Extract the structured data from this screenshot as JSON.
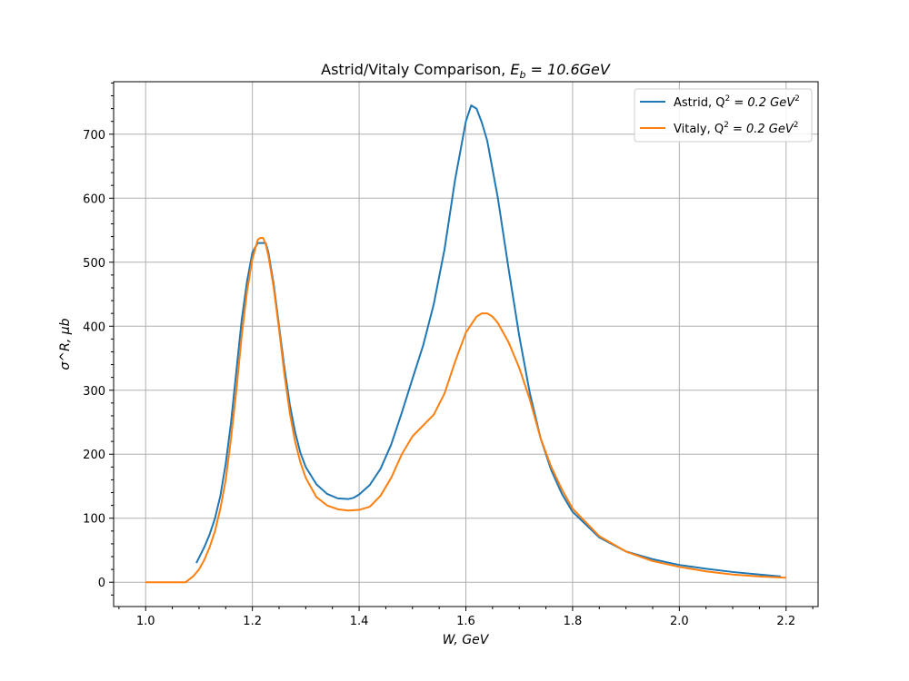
{
  "chart_data": {
    "type": "line",
    "title": "Astrid/Vitaly Comparison, E_b = 10.6GeV",
    "title_parts": {
      "prefix": "Astrid/Vitaly Comparison, ",
      "sym": "E",
      "sub": "b",
      "suffix": " = 10.6GeV"
    },
    "xlabel": "W, GeV",
    "ylabel": "σ^R, μb",
    "xlim": [
      0.94,
      2.26
    ],
    "ylim": [
      -38,
      782
    ],
    "xticks": [
      1.0,
      1.2,
      1.4,
      1.6,
      1.8,
      2.0,
      2.2
    ],
    "xtick_labels": [
      "1.0",
      "1.2",
      "1.4",
      "1.6",
      "1.8",
      "2.0",
      "2.2"
    ],
    "yticks": [
      0,
      100,
      200,
      300,
      400,
      500,
      600,
      700
    ],
    "ytick_labels": [
      "0",
      "100",
      "200",
      "300",
      "400",
      "500",
      "600",
      "700"
    ],
    "grid": true,
    "legend_position": "upper right",
    "series": [
      {
        "name": "Astrid, Q^2 = 0.2 GeV^2",
        "legend": {
          "prefix": "Astrid, Q",
          "sup1": "2",
          "mid": " = 0.2 GeV",
          "sup2": "2"
        },
        "color": "#1f77b4",
        "x": [
          1.095,
          1.11,
          1.12,
          1.13,
          1.14,
          1.15,
          1.16,
          1.17,
          1.18,
          1.19,
          1.2,
          1.21,
          1.22,
          1.225,
          1.23,
          1.24,
          1.25,
          1.26,
          1.27,
          1.28,
          1.29,
          1.3,
          1.32,
          1.34,
          1.36,
          1.38,
          1.39,
          1.4,
          1.42,
          1.44,
          1.46,
          1.48,
          1.5,
          1.52,
          1.54,
          1.56,
          1.58,
          1.6,
          1.61,
          1.62,
          1.63,
          1.64,
          1.66,
          1.68,
          1.7,
          1.72,
          1.74,
          1.76,
          1.78,
          1.8,
          1.85,
          1.9,
          1.95,
          2.0,
          2.05,
          2.1,
          2.15,
          2.19
        ],
        "y": [
          30,
          55,
          75,
          100,
          135,
          185,
          250,
          330,
          410,
          470,
          515,
          530,
          530,
          530,
          515,
          465,
          400,
          335,
          278,
          235,
          202,
          180,
          153,
          138,
          131,
          130,
          132,
          137,
          152,
          177,
          215,
          265,
          318,
          370,
          435,
          520,
          630,
          720,
          745,
          740,
          718,
          690,
          600,
          490,
          385,
          295,
          225,
          175,
          138,
          110,
          70,
          48,
          36,
          27,
          21,
          16,
          12,
          9
        ]
      },
      {
        "name": "Vitaly, Q^2 = 0.2 GeV^2",
        "legend": {
          "prefix": "Vitaly, Q",
          "sup1": "2",
          "mid": " = 0.2 GeV",
          "sup2": "2"
        },
        "color": "#ff7f0e",
        "x": [
          1.0,
          1.02,
          1.04,
          1.06,
          1.075,
          1.09,
          1.1,
          1.11,
          1.12,
          1.13,
          1.14,
          1.15,
          1.16,
          1.17,
          1.18,
          1.19,
          1.2,
          1.21,
          1.215,
          1.22,
          1.225,
          1.23,
          1.24,
          1.25,
          1.26,
          1.27,
          1.28,
          1.29,
          1.3,
          1.32,
          1.34,
          1.36,
          1.38,
          1.4,
          1.42,
          1.44,
          1.46,
          1.48,
          1.5,
          1.52,
          1.54,
          1.56,
          1.58,
          1.6,
          1.62,
          1.63,
          1.64,
          1.65,
          1.66,
          1.68,
          1.7,
          1.72,
          1.74,
          1.76,
          1.78,
          1.8,
          1.85,
          1.9,
          1.95,
          2.0,
          2.05,
          2.1,
          2.15,
          2.2
        ],
        "y": [
          0,
          0,
          0,
          0,
          0,
          10,
          20,
          35,
          55,
          80,
          115,
          160,
          225,
          300,
          385,
          455,
          505,
          535,
          538,
          538,
          528,
          510,
          460,
          395,
          325,
          265,
          220,
          187,
          163,
          133,
          120,
          114,
          112,
          113,
          118,
          135,
          163,
          200,
          228,
          245,
          262,
          295,
          345,
          390,
          415,
          420,
          420,
          415,
          405,
          375,
          335,
          285,
          225,
          180,
          145,
          115,
          72,
          48,
          33,
          24,
          17,
          12,
          9,
          7
        ]
      }
    ]
  }
}
